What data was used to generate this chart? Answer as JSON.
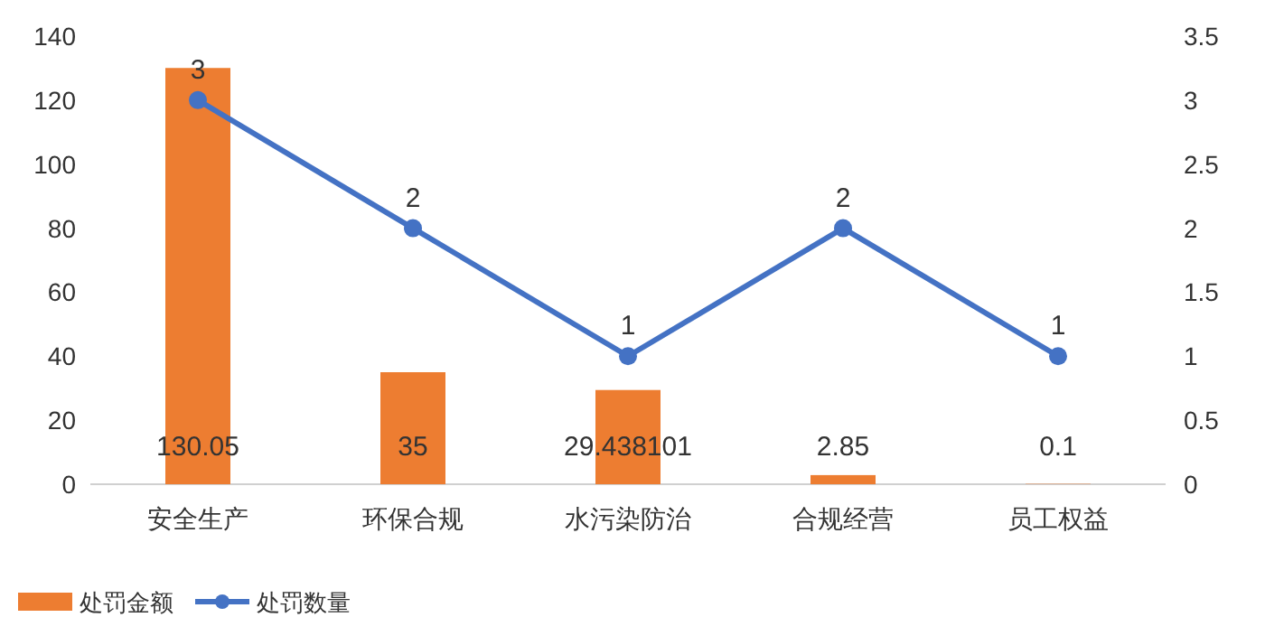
{
  "chart_data": {
    "type": "bar",
    "categories": [
      "安全生产",
      "环保合规",
      "水污染防治",
      "合规经营",
      "员工权益"
    ],
    "series": [
      {
        "name": "处罚金额",
        "color": "#ed7d31",
        "values": [
          130.05,
          35,
          29.438101,
          2.85,
          0.1
        ]
      },
      {
        "name": "处罚数量",
        "type": "line",
        "axis": "y2",
        "color": "#4472c4",
        "values": [
          3,
          2,
          1,
          2,
          1
        ],
        "marker": "circle"
      }
    ],
    "ylim": [
      0,
      140
    ],
    "yticks": [
      0,
      20,
      40,
      60,
      80,
      100,
      120,
      140
    ],
    "y2lim": [
      0,
      3.5
    ],
    "y2ticks": [
      0,
      0.5,
      1,
      1.5,
      2,
      2.5,
      3,
      3.5
    ],
    "data_labels": true,
    "legend": "bottom left"
  }
}
